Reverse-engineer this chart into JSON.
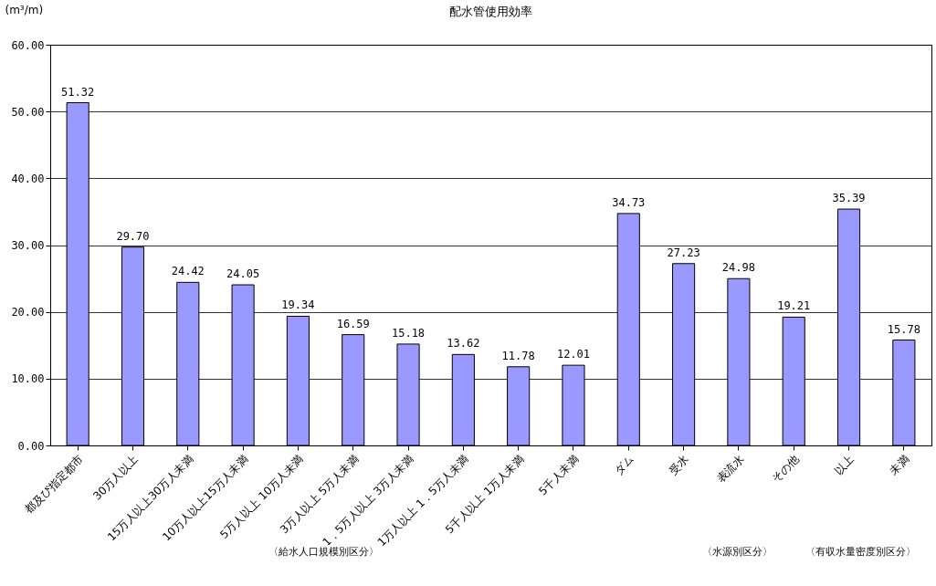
{
  "chart_data": {
    "type": "bar",
    "title": "配水管使用効率",
    "ylabel": "(m³/m)",
    "categories": [
      "都及び指定都市",
      "30万人以上",
      "15万人以上30万人未満",
      "10万人以上15万人未満",
      "5万人以上 10万人未満",
      "3万人以上 5万人未満",
      "1．5万人以上 3万人未満",
      "1万人以上 1．5万人未満",
      "5千人以上 1万人未満",
      "5千人未満",
      "ダム",
      "受水",
      "表流水",
      "その他",
      "以上",
      "未満"
    ],
    "values": [
      51.32,
      29.7,
      24.42,
      24.05,
      19.34,
      16.59,
      15.18,
      13.62,
      11.78,
      12.01,
      34.73,
      27.23,
      24.98,
      19.21,
      35.39,
      15.78
    ],
    "value_labels": [
      "51.32",
      "29.70",
      "24.42",
      "24.05",
      "19.34",
      "16.59",
      "15.18",
      "13.62",
      "11.78",
      "12.01",
      "34.73",
      "27.23",
      "24.98",
      "19.21",
      "35.39",
      "15.78"
    ],
    "color": "#9999ff",
    "ylim": [
      0,
      60
    ],
    "yticks": [
      {
        "value": 0,
        "label": "0.00"
      },
      {
        "value": 10,
        "label": "10.00"
      },
      {
        "value": 20,
        "label": "20.00"
      },
      {
        "value": 30,
        "label": "30.00"
      },
      {
        "value": 40,
        "label": "40.00"
      },
      {
        "value": 50,
        "label": "50.00"
      },
      {
        "value": 60,
        "label": "60.00"
      }
    ],
    "grid": "y",
    "annotations": [
      "〈給水人口規模別区分〉",
      "〈水源別区分〉",
      "〈有収水量密度別区分〉"
    ]
  }
}
